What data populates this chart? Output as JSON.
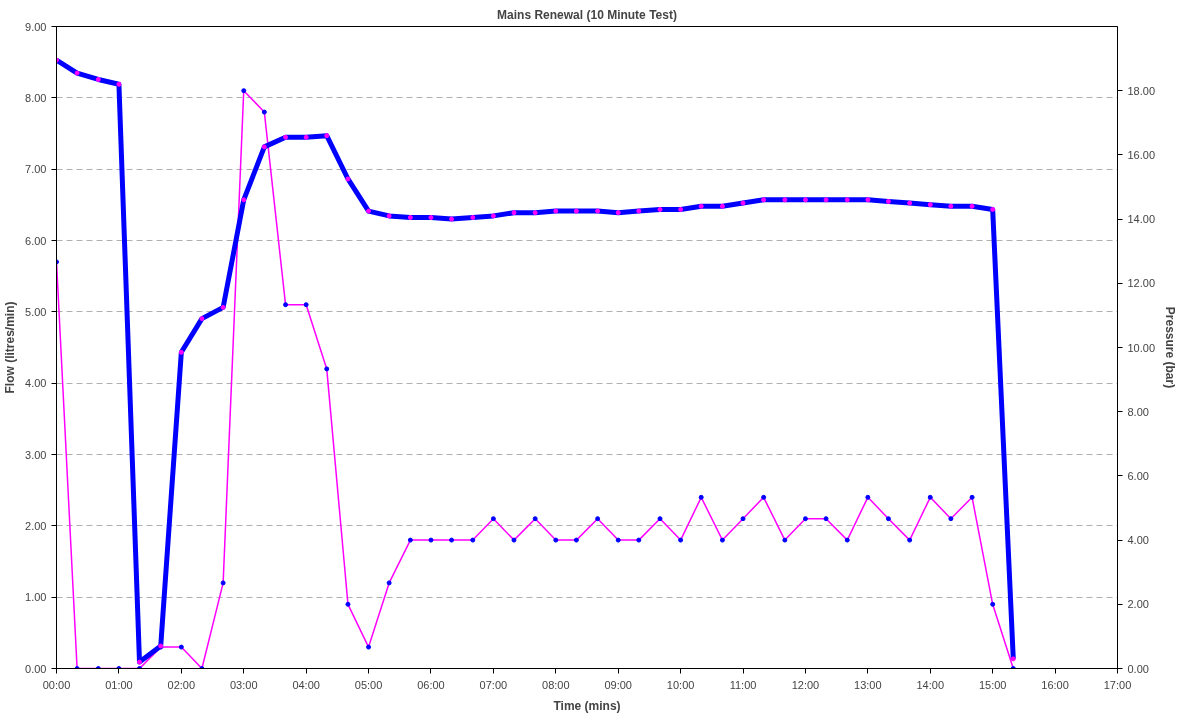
{
  "chart_data": {
    "type": "line",
    "title": "Mains Renewal (10 Minute Test)",
    "xlabel": "Time (mins)",
    "ylabel": "Flow (litres/min)",
    "y2label": "Pressure (bar)",
    "x": [
      0,
      0.33,
      0.67,
      1,
      1.33,
      1.67,
      2,
      2.33,
      2.67,
      3,
      3.33,
      3.67,
      4,
      4.33,
      4.67,
      5,
      5.33,
      5.67,
      6,
      6.33,
      6.67,
      7,
      7.33,
      7.67,
      8,
      8.33,
      8.67,
      9,
      9.33,
      9.67,
      10,
      10.33,
      10.67,
      11,
      11.33,
      11.67,
      12,
      12.33,
      12.67,
      13,
      13.33,
      13.67,
      14,
      14.33,
      14.67,
      15,
      15.33
    ],
    "series": [
      {
        "color": "#ff00ff",
        "values": [
          5.7,
          0,
          0,
          0,
          0,
          0.3,
          0.3,
          0,
          1.2,
          8.1,
          7.8,
          5.1,
          5.1,
          4.2,
          0.9,
          0.3,
          1.2,
          1.8,
          1.8,
          1.8,
          1.8,
          2.1,
          1.8,
          2.1,
          1.8,
          1.8,
          2.1,
          1.8,
          1.8,
          2.1,
          1.8,
          2.4,
          1.8,
          2.1,
          2.4,
          1.8,
          2.1,
          2.1,
          1.8,
          2.4,
          2.1,
          1.8,
          2.4,
          2.1,
          2.4,
          0.9,
          0
        ]
      },
      {
        "color": "#0000ff",
        "axis": "y2",
        "values": [
          18.95,
          18.55,
          18.35,
          18.2,
          0.2,
          0.7,
          9.85,
          10.9,
          11.25,
          14.6,
          16.25,
          16.55,
          16.55,
          16.6,
          15.25,
          14.25,
          14.1,
          14.05,
          14.05,
          14.0,
          14.05,
          14.1,
          14.2,
          14.2,
          14.25,
          14.25,
          14.25,
          14.2,
          14.25,
          14.3,
          14.3,
          14.4,
          14.4,
          14.5,
          14.6,
          14.6,
          14.6,
          14.6,
          14.6,
          14.6,
          14.55,
          14.5,
          14.45,
          14.4,
          14.4,
          14.3,
          0.3
        ]
      }
    ],
    "xlim": [
      0,
      17
    ],
    "ylim": [
      0,
      9
    ],
    "y2lim": [
      0,
      20
    ],
    "xticks": [
      {
        "value": 0,
        "label": "00:00"
      },
      {
        "value": 1,
        "label": "01:00"
      },
      {
        "value": 2,
        "label": "02:00"
      },
      {
        "value": 3,
        "label": "03:00"
      },
      {
        "value": 4,
        "label": "04:00"
      },
      {
        "value": 5,
        "label": "05:00"
      },
      {
        "value": 6,
        "label": "06:00"
      },
      {
        "value": 7,
        "label": "07:00"
      },
      {
        "value": 8,
        "label": "08:00"
      },
      {
        "value": 9,
        "label": "09:00"
      },
      {
        "value": 10,
        "label": "10:00"
      },
      {
        "value": 11,
        "label": "11:00"
      },
      {
        "value": 12,
        "label": "12:00"
      },
      {
        "value": 13,
        "label": "13:00"
      },
      {
        "value": 14,
        "label": "14:00"
      },
      {
        "value": 15,
        "label": "15:00"
      },
      {
        "value": 16,
        "label": "16:00"
      },
      {
        "value": 17,
        "label": "17:00"
      }
    ],
    "yticks": [
      {
        "value": 0,
        "label": "0.00"
      },
      {
        "value": 1,
        "label": "1.00"
      },
      {
        "value": 2,
        "label": "2.00"
      },
      {
        "value": 3,
        "label": "3.00"
      },
      {
        "value": 4,
        "label": "4.00"
      },
      {
        "value": 5,
        "label": "5.00"
      },
      {
        "value": 6,
        "label": "6.00"
      },
      {
        "value": 7,
        "label": "7.00"
      },
      {
        "value": 8,
        "label": "8.00"
      },
      {
        "value": 9,
        "label": "9.00"
      }
    ],
    "y2ticks": [
      {
        "value": 0,
        "label": "0.00"
      },
      {
        "value": 2,
        "label": "2.00"
      },
      {
        "value": 4,
        "label": "4.00"
      },
      {
        "value": 6,
        "label": "6.00"
      },
      {
        "value": 8,
        "label": "8.00"
      },
      {
        "value": 10,
        "label": "10.00"
      },
      {
        "value": 12,
        "label": "12.00"
      },
      {
        "value": 14,
        "label": "14.00"
      },
      {
        "value": 16,
        "label": "16.00"
      },
      {
        "value": 18,
        "label": "18.00"
      }
    ],
    "grid": "y",
    "marker": "circle",
    "line_style": "solid"
  }
}
